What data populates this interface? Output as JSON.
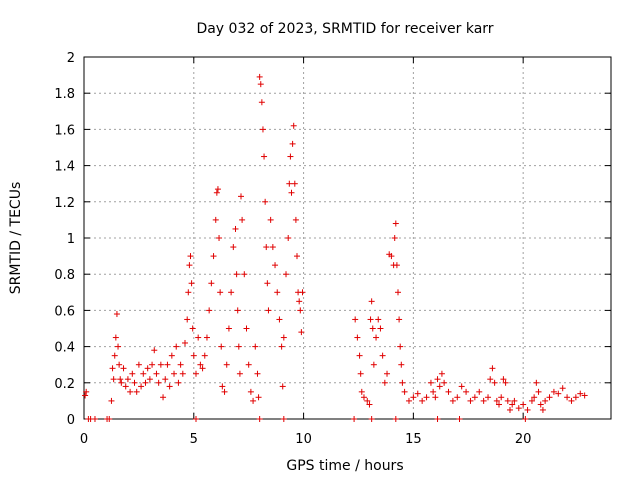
{
  "chart_data": {
    "type": "scatter",
    "title": "Day 032 of 2023, SRMTID for receiver karr",
    "xlabel": "GPS time / hours",
    "ylabel": "SRMTID / TECUs",
    "xlim": [
      0,
      24
    ],
    "ylim": [
      0,
      2
    ],
    "xticks": [
      0,
      5,
      10,
      15,
      20
    ],
    "xtick_labels": [
      "0",
      "5",
      "10",
      "15",
      "20"
    ],
    "yticks": [
      0,
      0.2,
      0.4,
      0.6,
      0.8,
      1,
      1.2,
      1.4,
      1.6,
      1.8,
      2
    ],
    "ytick_labels": [
      "0",
      "0.2",
      "0.4",
      "0.6",
      "0.8",
      "1",
      "1.2",
      "1.4",
      "1.6",
      "1.8",
      "2"
    ],
    "grid": true,
    "marker": "+",
    "marker_color": "#e00000",
    "series": [
      {
        "name": "SRMTID",
        "points": [
          [
            0.05,
            0.13
          ],
          [
            0.1,
            0.15
          ],
          [
            0.2,
            0.0
          ],
          [
            0.3,
            0.0
          ],
          [
            0.5,
            0.0
          ],
          [
            1.05,
            0.0
          ],
          [
            1.15,
            0.0
          ],
          [
            1.25,
            0.1
          ],
          [
            1.3,
            0.28
          ],
          [
            1.35,
            0.22
          ],
          [
            1.4,
            0.35
          ],
          [
            1.45,
            0.45
          ],
          [
            1.5,
            0.58
          ],
          [
            1.55,
            0.4
          ],
          [
            1.6,
            0.3
          ],
          [
            1.65,
            0.22
          ],
          [
            1.7,
            0.2
          ],
          [
            1.8,
            0.28
          ],
          [
            1.9,
            0.18
          ],
          [
            2.0,
            0.22
          ],
          [
            2.1,
            0.15
          ],
          [
            2.2,
            0.25
          ],
          [
            2.3,
            0.2
          ],
          [
            2.4,
            0.15
          ],
          [
            2.5,
            0.3
          ],
          [
            2.6,
            0.18
          ],
          [
            2.7,
            0.25
          ],
          [
            2.8,
            0.2
          ],
          [
            2.9,
            0.28
          ],
          [
            3.0,
            0.22
          ],
          [
            3.1,
            0.3
          ],
          [
            3.2,
            0.38
          ],
          [
            3.3,
            0.25
          ],
          [
            3.4,
            0.2
          ],
          [
            3.5,
            0.3
          ],
          [
            3.6,
            0.12
          ],
          [
            3.7,
            0.22
          ],
          [
            3.8,
            0.3
          ],
          [
            3.9,
            0.18
          ],
          [
            4.0,
            0.35
          ],
          [
            4.1,
            0.25
          ],
          [
            4.2,
            0.4
          ],
          [
            4.3,
            0.2
          ],
          [
            4.4,
            0.3
          ],
          [
            4.5,
            0.25
          ],
          [
            4.6,
            0.42
          ],
          [
            4.7,
            0.55
          ],
          [
            4.75,
            0.7
          ],
          [
            4.8,
            0.85
          ],
          [
            4.85,
            0.9
          ],
          [
            4.9,
            0.75
          ],
          [
            4.95,
            0.5
          ],
          [
            5.0,
            0.35
          ],
          [
            5.1,
            0.25
          ],
          [
            5.2,
            0.45
          ],
          [
            5.3,
            0.3
          ],
          [
            5.4,
            0.28
          ],
          [
            5.5,
            0.35
          ],
          [
            5.6,
            0.45
          ],
          [
            5.7,
            0.6
          ],
          [
            5.8,
            0.75
          ],
          [
            5.9,
            0.9
          ],
          [
            6.0,
            1.1
          ],
          [
            6.05,
            1.25
          ],
          [
            6.1,
            1.27
          ],
          [
            6.15,
            1.0
          ],
          [
            6.2,
            0.7
          ],
          [
            6.25,
            0.4
          ],
          [
            6.3,
            0.18
          ],
          [
            6.4,
            0.15
          ],
          [
            6.5,
            0.3
          ],
          [
            6.6,
            0.5
          ],
          [
            6.7,
            0.7
          ],
          [
            6.8,
            0.95
          ],
          [
            6.9,
            1.05
          ],
          [
            6.95,
            0.8
          ],
          [
            7.0,
            0.6
          ],
          [
            7.05,
            0.4
          ],
          [
            7.1,
            0.25
          ],
          [
            7.15,
            1.23
          ],
          [
            7.2,
            1.1
          ],
          [
            7.3,
            0.8
          ],
          [
            7.4,
            0.5
          ],
          [
            7.5,
            0.3
          ],
          [
            7.6,
            0.15
          ],
          [
            7.7,
            0.1
          ],
          [
            7.8,
            0.4
          ],
          [
            7.9,
            0.25
          ],
          [
            7.95,
            0.12
          ],
          [
            8.0,
            1.89
          ],
          [
            8.05,
            1.85
          ],
          [
            8.1,
            1.75
          ],
          [
            8.15,
            1.6
          ],
          [
            8.2,
            1.45
          ],
          [
            8.25,
            1.2
          ],
          [
            8.3,
            0.95
          ],
          [
            8.35,
            0.75
          ],
          [
            8.4,
            0.6
          ],
          [
            8.5,
            1.1
          ],
          [
            8.6,
            0.95
          ],
          [
            8.7,
            0.85
          ],
          [
            8.8,
            0.7
          ],
          [
            8.9,
            0.55
          ],
          [
            9.0,
            0.4
          ],
          [
            9.05,
            0.18
          ],
          [
            9.1,
            0.45
          ],
          [
            9.2,
            0.8
          ],
          [
            9.3,
            1.0
          ],
          [
            9.35,
            1.3
          ],
          [
            9.4,
            1.45
          ],
          [
            9.45,
            1.25
          ],
          [
            9.5,
            1.52
          ],
          [
            9.55,
            1.62
          ],
          [
            9.6,
            1.3
          ],
          [
            9.65,
            1.1
          ],
          [
            9.7,
            0.9
          ],
          [
            9.75,
            0.7
          ],
          [
            9.8,
            0.65
          ],
          [
            9.85,
            0.6
          ],
          [
            9.9,
            0.48
          ],
          [
            9.95,
            0.7
          ],
          [
            12.35,
            0.55
          ],
          [
            12.45,
            0.45
          ],
          [
            12.55,
            0.35
          ],
          [
            12.6,
            0.25
          ],
          [
            12.65,
            0.15
          ],
          [
            12.75,
            0.12
          ],
          [
            12.9,
            0.1
          ],
          [
            13.0,
            0.08
          ],
          [
            13.05,
            0.55
          ],
          [
            13.1,
            0.65
          ],
          [
            13.15,
            0.5
          ],
          [
            13.2,
            0.3
          ],
          [
            13.3,
            0.45
          ],
          [
            13.4,
            0.55
          ],
          [
            13.5,
            0.5
          ],
          [
            13.6,
            0.35
          ],
          [
            13.7,
            0.2
          ],
          [
            13.8,
            0.25
          ],
          [
            13.9,
            0.91
          ],
          [
            14.0,
            0.9
          ],
          [
            14.1,
            0.85
          ],
          [
            14.15,
            1.0
          ],
          [
            14.2,
            1.08
          ],
          [
            14.25,
            0.85
          ],
          [
            14.3,
            0.7
          ],
          [
            14.35,
            0.55
          ],
          [
            14.4,
            0.4
          ],
          [
            14.45,
            0.3
          ],
          [
            14.5,
            0.2
          ],
          [
            14.6,
            0.15
          ],
          [
            14.8,
            0.1
          ],
          [
            15.0,
            0.12
          ],
          [
            15.2,
            0.14
          ],
          [
            15.4,
            0.1
          ],
          [
            15.6,
            0.12
          ],
          [
            15.8,
            0.2
          ],
          [
            15.9,
            0.15
          ],
          [
            16.0,
            0.12
          ],
          [
            16.1,
            0.22
          ],
          [
            16.2,
            0.18
          ],
          [
            16.3,
            0.25
          ],
          [
            16.4,
            0.2
          ],
          [
            16.6,
            0.15
          ],
          [
            16.8,
            0.1
          ],
          [
            17.0,
            0.12
          ],
          [
            17.2,
            0.18
          ],
          [
            17.4,
            0.15
          ],
          [
            17.6,
            0.1
          ],
          [
            17.8,
            0.12
          ],
          [
            18.0,
            0.15
          ],
          [
            18.2,
            0.1
          ],
          [
            18.4,
            0.12
          ],
          [
            18.5,
            0.22
          ],
          [
            18.6,
            0.28
          ],
          [
            18.7,
            0.2
          ],
          [
            18.8,
            0.1
          ],
          [
            18.9,
            0.08
          ],
          [
            19.0,
            0.12
          ],
          [
            19.1,
            0.22
          ],
          [
            19.2,
            0.2
          ],
          [
            19.3,
            0.1
          ],
          [
            19.4,
            0.05
          ],
          [
            19.5,
            0.08
          ],
          [
            19.6,
            0.1
          ],
          [
            19.8,
            0.06
          ],
          [
            20.0,
            0.08
          ],
          [
            20.2,
            0.05
          ],
          [
            20.4,
            0.1
          ],
          [
            20.5,
            0.12
          ],
          [
            20.6,
            0.2
          ],
          [
            20.7,
            0.15
          ],
          [
            20.8,
            0.08
          ],
          [
            20.9,
            0.05
          ],
          [
            21.0,
            0.1
          ],
          [
            21.2,
            0.12
          ],
          [
            21.4,
            0.15
          ],
          [
            21.6,
            0.14
          ],
          [
            21.8,
            0.17
          ],
          [
            22.0,
            0.12
          ],
          [
            22.2,
            0.1
          ],
          [
            22.4,
            0.12
          ],
          [
            22.6,
            0.14
          ],
          [
            22.8,
            0.13
          ],
          [
            5.1,
            0.0
          ],
          [
            8.0,
            0.0
          ],
          [
            9.1,
            0.0
          ],
          [
            12.3,
            0.0
          ],
          [
            13.1,
            0.0
          ],
          [
            14.2,
            0.0
          ],
          [
            16.1,
            0.0
          ],
          [
            17.1,
            0.0
          ],
          [
            20.1,
            0.0
          ]
        ]
      }
    ]
  }
}
